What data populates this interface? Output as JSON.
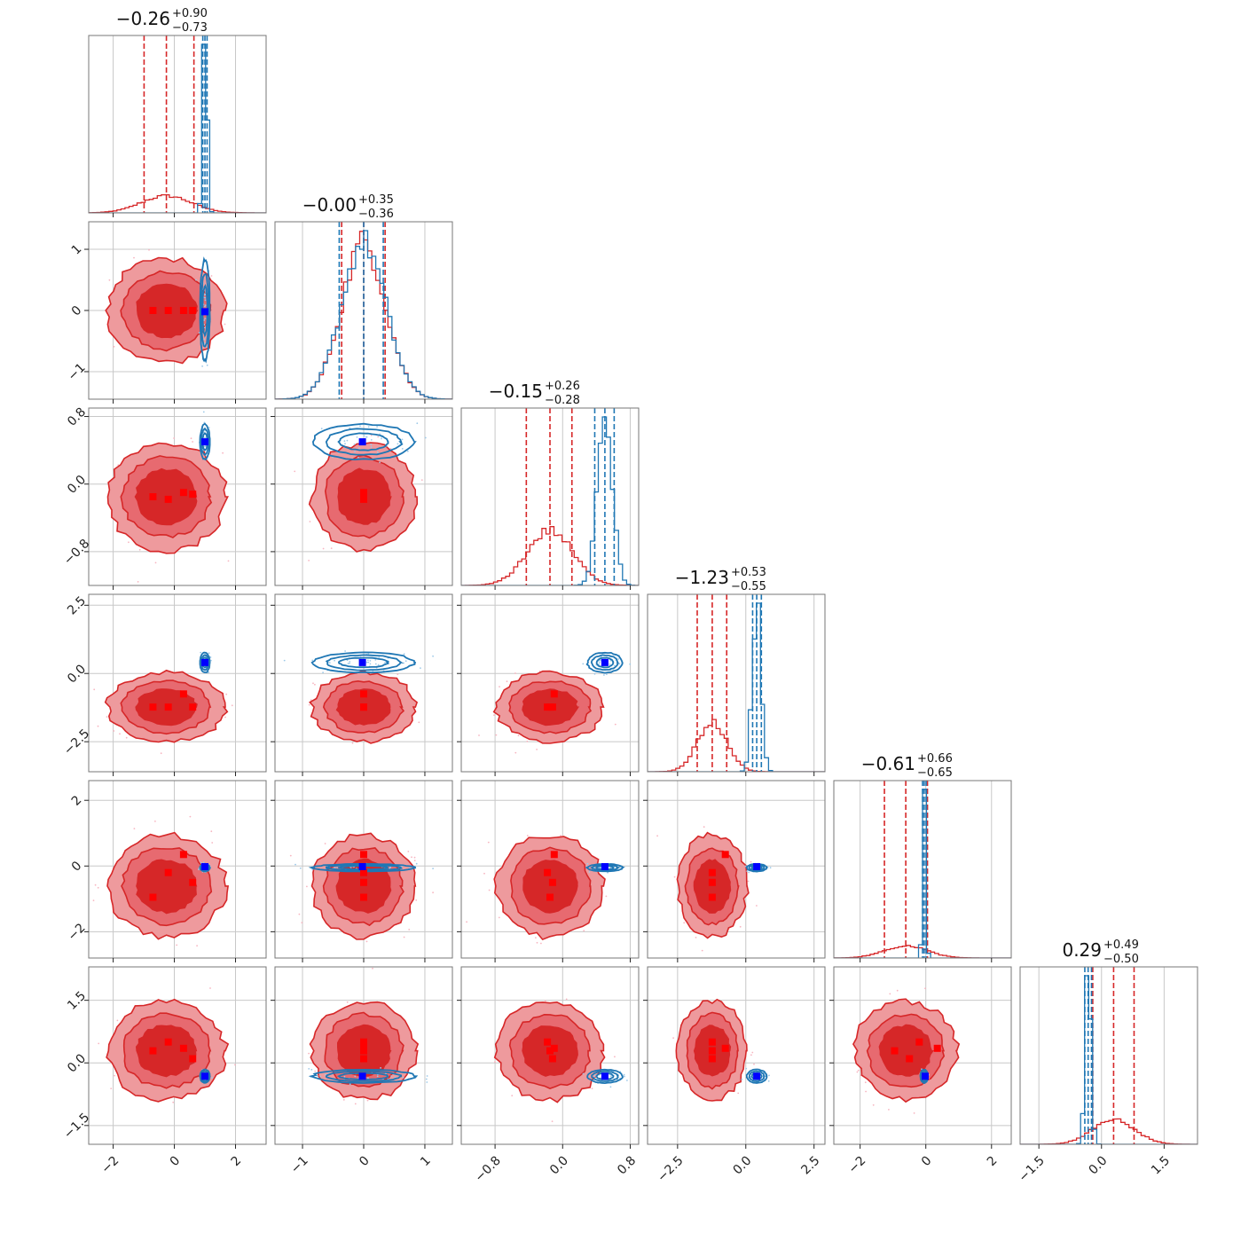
{
  "chart_data": {
    "type": "corner",
    "n_params": 6,
    "grid": true,
    "colors": {
      "red": "#d62728",
      "red_light": "#ee9a9d",
      "red_points": "#f7b6c1",
      "blue": "#1f77b4",
      "blue_light": "#9ec9e8",
      "marker_red": "#ff0000",
      "marker_blue": "#0000ff",
      "grid": "#c8c8c8"
    },
    "axes": [
      {
        "range": [
          -2.8,
          3.0
        ],
        "ticks": [
          -2,
          0,
          2
        ],
        "tick_labels": [
          "−2",
          "0",
          "2"
        ]
      },
      {
        "range": [
          -1.45,
          1.45
        ],
        "ticks": [
          -1,
          0,
          1
        ],
        "tick_labels": [
          "−1",
          "0",
          "1"
        ]
      },
      {
        "range": [
          -1.2,
          0.9
        ],
        "ticks": [
          -0.8,
          0.0,
          0.8
        ],
        "tick_labels": [
          "−0.8",
          "0.0",
          "0.8"
        ]
      },
      {
        "range": [
          -3.6,
          2.9
        ],
        "ticks": [
          -2.5,
          0.0,
          2.5
        ],
        "tick_labels": [
          "−2.5",
          "0.0",
          "2.5"
        ]
      },
      {
        "range": [
          -2.8,
          2.6
        ],
        "ticks": [
          -2,
          0,
          2
        ],
        "tick_labels": [
          "−2",
          "0",
          "2"
        ]
      },
      {
        "range": [
          -1.95,
          2.3
        ],
        "ticks": [
          -1.5,
          0.0,
          1.5
        ],
        "tick_labels": [
          "−1.5",
          "0.0",
          "1.5"
        ]
      }
    ],
    "titles": [
      {
        "value": "−0.26",
        "plus": "+0.90",
        "minus": "−0.73"
      },
      {
        "value": "−0.00",
        "plus": "+0.35",
        "minus": "−0.36"
      },
      {
        "value": "−0.15",
        "plus": "+0.26",
        "minus": "−0.28"
      },
      {
        "value": "−1.23",
        "plus": "+0.53",
        "minus": "−0.55"
      },
      {
        "value": "−0.61",
        "plus": "+0.66",
        "minus": "−0.65"
      },
      {
        "value": "0.29",
        "plus": "+0.49",
        "minus": "−0.50"
      }
    ],
    "series": [
      {
        "color": "#d62728",
        "means": [
          -0.26,
          0.0,
          -0.15,
          -1.23,
          -0.61,
          0.29
        ],
        "sds": [
          0.82,
          0.36,
          0.27,
          0.54,
          0.66,
          0.5
        ],
        "quantiles": [
          [
            -0.99,
            0.64
          ],
          [
            -0.36,
            0.35
          ],
          [
            -0.43,
            0.11
          ],
          [
            -1.78,
            -0.7
          ],
          [
            -1.26,
            0.05
          ],
          [
            -0.21,
            0.78
          ]
        ],
        "markers": [
          [
            -0.7,
            0.0,
            -0.15,
            -1.23,
            -0.95,
            0.29
          ],
          [
            -0.2,
            0.0,
            -0.18,
            -1.23,
            -0.2,
            0.5
          ],
          [
            0.3,
            0.0,
            -0.1,
            -0.75,
            0.35,
            0.35
          ],
          [
            0.6,
            0.0,
            -0.12,
            -1.23,
            -0.5,
            0.1
          ]
        ]
      },
      {
        "color": "#1f77b4",
        "means": [
          1.0,
          0.0,
          0.5,
          0.4,
          -0.05,
          -0.32
        ],
        "sds": [
          0.07,
          0.36,
          0.09,
          0.16,
          0.05,
          0.07
        ],
        "quantiles": [
          [
            0.93,
            1.07
          ],
          [
            -0.4,
            0.32
          ],
          [
            0.38,
            0.61
          ],
          [
            0.25,
            0.57
          ],
          [
            -0.1,
            0.01
          ],
          [
            -0.4,
            -0.24
          ]
        ],
        "markers": [
          [
            1.0,
            -0.02,
            0.5,
            0.4,
            -0.02,
            -0.32
          ]
        ]
      }
    ]
  }
}
